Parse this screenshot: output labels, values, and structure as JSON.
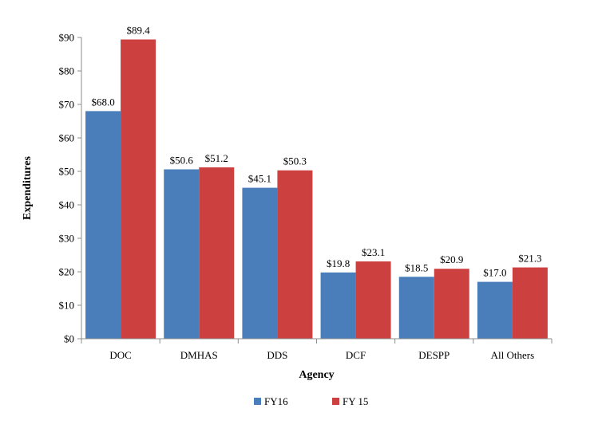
{
  "chart_data": {
    "type": "bar",
    "xlabel": "Agency",
    "ylabel": "Expenditures",
    "ylim": [
      0,
      90
    ],
    "y_ticks": [
      "$0",
      "$10",
      "$20",
      "$30",
      "$40",
      "$50",
      "$60",
      "$70",
      "$80",
      "$90"
    ],
    "y_tick_values": [
      0,
      10,
      20,
      30,
      40,
      50,
      60,
      70,
      80,
      90
    ],
    "categories": [
      "DOC",
      "DMHAS",
      "DDS",
      "DCF",
      "DESPP",
      "All Others"
    ],
    "series": [
      {
        "name": "FY16",
        "color": "#4a7ebb",
        "values": [
          68.0,
          50.6,
          45.1,
          19.8,
          18.5,
          17.0
        ],
        "labels": [
          "$68.0",
          "$50.6",
          "$45.1",
          "$19.8",
          "$18.5",
          "$17.0"
        ]
      },
      {
        "name": "FY 15",
        "color": "#cd4040",
        "values": [
          89.4,
          51.2,
          50.3,
          23.1,
          20.9,
          21.3
        ],
        "labels": [
          "$89.4",
          "$51.2",
          "$50.3",
          "$23.1",
          "$20.9",
          "$21.3"
        ]
      }
    ],
    "grid": false,
    "legend_position": "bottom"
  }
}
